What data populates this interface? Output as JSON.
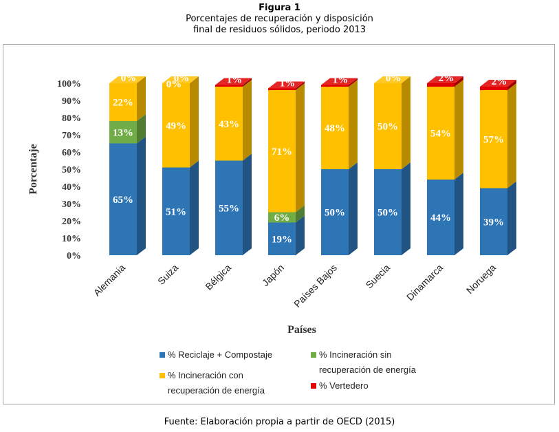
{
  "header": {
    "figure_label": "Figura 1",
    "subtitle_line1": "Porcentajes de recuperación y disposición",
    "subtitle_line2": "final de residuos sólidos, periodo 2013"
  },
  "footer": {
    "source": "Fuente: Elaboración propia a partir de OECD (2015)"
  },
  "chart_data": {
    "type": "bar",
    "stacked": true,
    "title": "",
    "xlabel": "Países",
    "ylabel": "Porcentaje",
    "ylim": [
      0,
      100
    ],
    "yticks": [
      "0%",
      "10%",
      "20%",
      "30%",
      "40%",
      "50%",
      "60%",
      "70%",
      "80%",
      "90%",
      "100%"
    ],
    "categories": [
      "Alemania",
      "Suiza",
      "Bélgica",
      "Japón",
      "Países Bajos",
      "Suecia",
      "Dinamarca",
      "Noruega"
    ],
    "series": [
      {
        "name": "% Reciclaje + Compostaje",
        "color": "#2e75b6",
        "values": [
          65,
          51,
          55,
          19,
          50,
          50,
          44,
          39
        ]
      },
      {
        "name": "% Incineración sin recuperación de energía",
        "color": "#70ad47",
        "values": [
          13,
          0,
          0,
          6,
          0,
          0,
          0,
          0
        ]
      },
      {
        "name": "% Incineración con recuperación de energía",
        "color": "#ffc000",
        "values": [
          22,
          49,
          43,
          71,
          48,
          50,
          54,
          57
        ]
      },
      {
        "name": "% Vertedero",
        "color": "#e00000",
        "values": [
          0,
          0,
          1,
          1,
          1,
          0,
          2,
          2
        ]
      }
    ],
    "labels": [
      [
        "65%",
        "13%",
        "22%",
        "0%"
      ],
      [
        "51%",
        "0%",
        "49%",
        "0%"
      ],
      [
        "55%",
        "",
        "43%",
        "1%"
      ],
      [
        "19%",
        "6%",
        "71%",
        "1%"
      ],
      [
        "50%",
        "",
        "48%",
        "1%"
      ],
      [
        "50%",
        "",
        "50%",
        "0%"
      ],
      [
        "44%",
        "",
        "54%",
        "2%"
      ],
      [
        "39%",
        "",
        "57%",
        "2%"
      ]
    ],
    "legend": {
      "position": "bottom",
      "items": [
        {
          "label_lines": [
            "% Reciclaje + Compostaje"
          ],
          "color": "#2e75b6"
        },
        {
          "label_lines": [
            "% Incineración sin",
            "recuperación de energía"
          ],
          "color": "#70ad47"
        },
        {
          "label_lines": [
            "% Incineración con",
            "recuperación de energía"
          ],
          "color": "#ffc000"
        },
        {
          "label_lines": [
            "% Vertedero"
          ],
          "color": "#e00000"
        }
      ]
    },
    "grid": false
  }
}
